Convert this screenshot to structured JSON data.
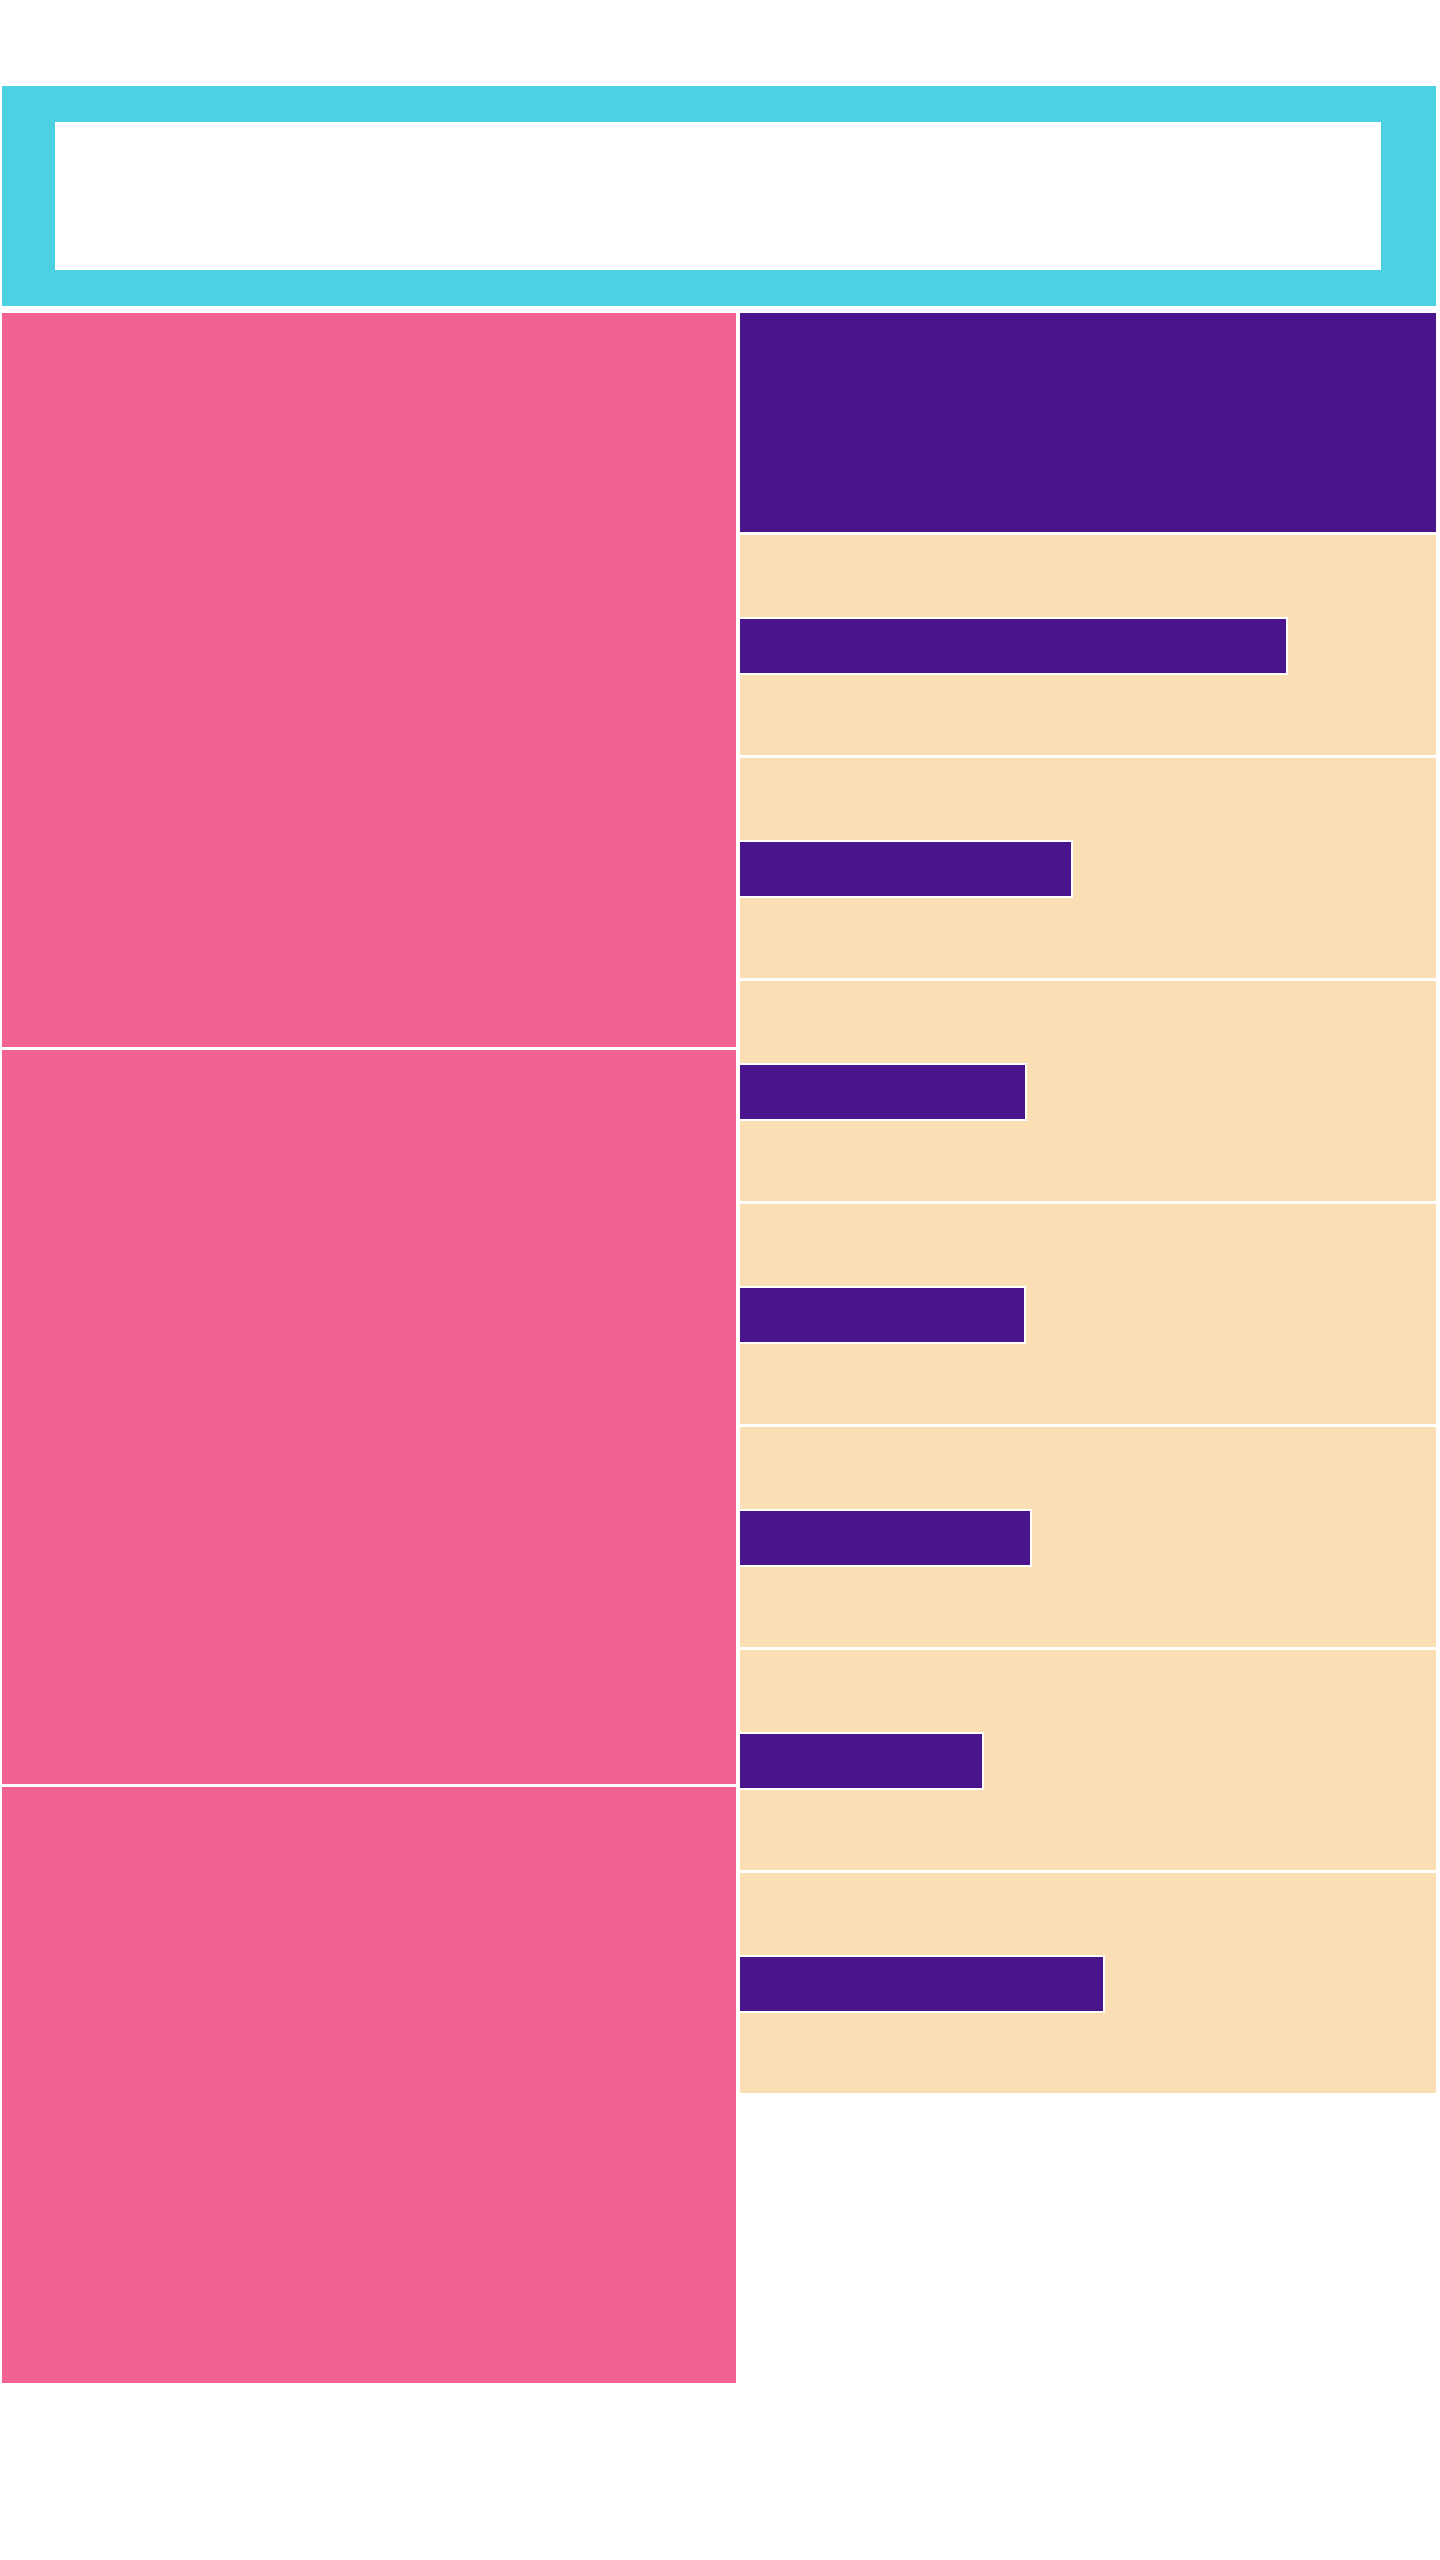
{
  "colors": {
    "header": "#4DD0E1",
    "tile": "#F06292",
    "panel_head": "#4A148C",
    "row": "#FCDEB5",
    "bar": "#4A148C",
    "background": "#FFFFFF"
  },
  "search": {
    "value": "",
    "placeholder": ""
  },
  "bar_levels": [
    0.785,
    0.475,
    0.41,
    0.408,
    0.417,
    0.347,
    0.521
  ]
}
